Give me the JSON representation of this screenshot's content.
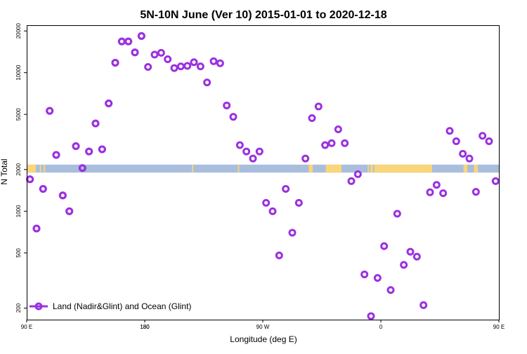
{
  "chart_data": {
    "type": "scatter",
    "title": "5N-10N June (Ver 10)   2015-01-01 to 2020-12-18",
    "xlabel": "Longitude (deg E)",
    "ylabel": "N Total",
    "x_scale": "linear",
    "y_scale": "log",
    "xlim": [
      90,
      450
    ],
    "ylim": [
      165,
      22000
    ],
    "x_ticks": [
      {
        "value": 90,
        "label": "90 E"
      },
      {
        "value": 180,
        "label": "180"
      },
      {
        "value": 270,
        "label": "90 W"
      },
      {
        "value": 360,
        "label": "0"
      },
      {
        "value": 450,
        "label": "90 E"
      },
      {
        "value": 540,
        "label": "180"
      }
    ],
    "y_ticks": [
      200,
      500,
      1000,
      2000,
      5000,
      10000,
      20000
    ],
    "grid": false,
    "legend_position": "bottom-left",
    "series": [
      {
        "name": "Land (Nadir&Glint) and Ocean (Glint)",
        "color": "#9b30e0",
        "x": [
          92.5,
          97.5,
          102.5,
          107.5,
          112.5,
          117.5,
          122.5,
          127.5,
          132.5,
          137.5,
          142.5,
          147.5,
          152.5,
          157.5,
          162.5,
          167.5,
          172.5,
          177.5,
          182.5,
          187.5,
          192.5,
          197.5,
          202.5,
          207.5,
          212.5,
          217.5,
          222.5,
          227.5,
          232.5,
          237.5,
          242.5,
          247.5,
          252.5,
          257.5,
          262.5,
          267.5,
          272.5,
          277.5,
          282.5,
          287.5,
          292.5,
          297.5,
          302.5,
          307.5,
          312.5,
          317.5,
          322.5,
          327.5,
          332.5,
          337.5,
          342.5,
          347.5,
          352.5,
          357.5,
          362.5,
          367.5,
          372.5,
          377.5,
          382.5,
          387.5,
          392.5,
          397.5,
          402.5,
          407.5,
          412.5,
          417.5,
          422.5,
          427.5,
          432.5,
          437.5,
          442.5,
          447.5
        ],
        "y": [
          1700,
          750,
          1450,
          5300,
          2550,
          1300,
          1000,
          2950,
          2050,
          2700,
          4300,
          2800,
          6000,
          11800,
          16800,
          16800,
          14000,
          18400,
          11000,
          13500,
          13900,
          12500,
          10800,
          11100,
          11200,
          11900,
          11100,
          8500,
          12100,
          11700,
          5800,
          4800,
          3000,
          2700,
          2400,
          2700,
          1150,
          1000,
          480,
          1450,
          700,
          1150,
          2400,
          4700,
          5700,
          3000,
          3100,
          3900,
          3100,
          1650,
          1850,
          350,
          175,
          330,
          560,
          270,
          960,
          410,
          510,
          470,
          210,
          1370,
          1550,
          1350,
          3800,
          3200,
          2600,
          2400,
          1380,
          3500,
          3200,
          1650
        ],
        "x_wrap": [
          452.5,
          457.5,
          462.5,
          467.5,
          472.5,
          477.5,
          482.5,
          487.5,
          492.5,
          497.5,
          502.5,
          507.5,
          512.5,
          517.5,
          522.5,
          527.5,
          532.5,
          537.5
        ],
        "y_wrap": [
          1700,
          750,
          1450,
          5300,
          2550,
          1300,
          1000,
          2950,
          2050,
          2700,
          4300,
          2800,
          6000,
          11800,
          16800,
          16800,
          14000,
          18400
        ]
      }
    ],
    "band": {
      "y_range": [
        1900,
        2170
      ],
      "ocean_color": "#a9bedd",
      "land_color": "#f9d67a",
      "land_ranges": [
        [
          90,
          97
        ],
        [
          100,
          101
        ],
        [
          103,
          104
        ],
        [
          216,
          217
        ],
        [
          251,
          252
        ],
        [
          305,
          308
        ],
        [
          318,
          330
        ],
        [
          350,
          351
        ],
        [
          352,
          354
        ],
        [
          355,
          399
        ],
        [
          423,
          426
        ],
        [
          431,
          433
        ],
        [
          433,
          434
        ],
        [
          456,
          458
        ],
        [
          461,
          463
        ],
        [
          465,
          466
        ],
        [
          466,
          468
        ],
        [
          475,
          478
        ],
        [
          498,
          499
        ]
      ]
    }
  }
}
